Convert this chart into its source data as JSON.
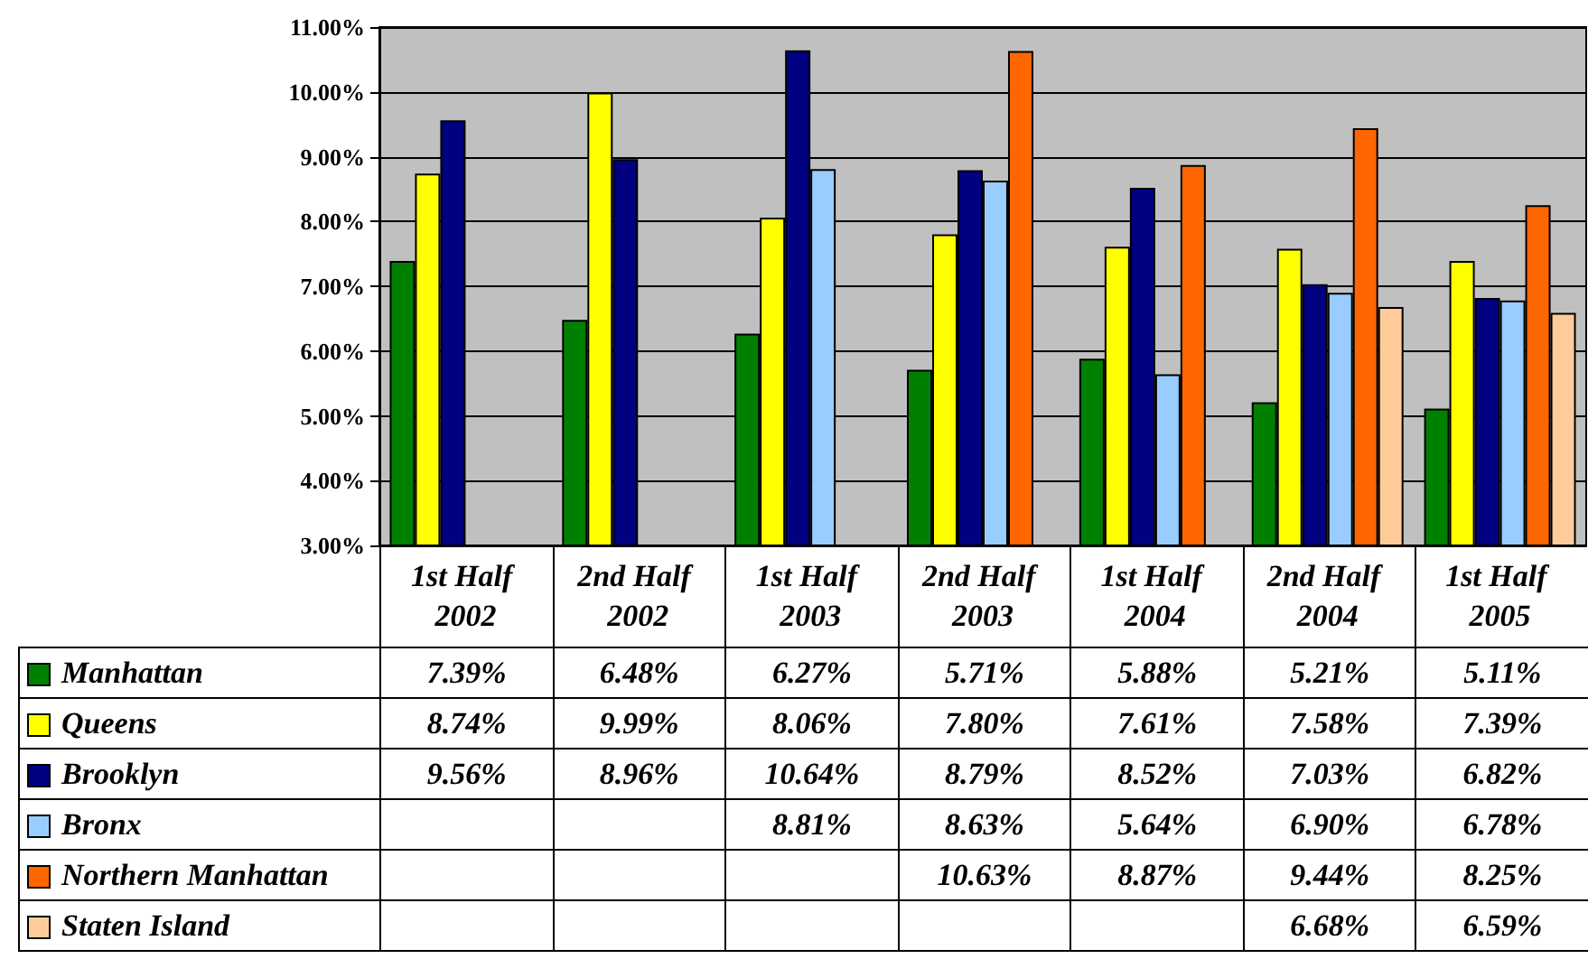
{
  "chart_data": {
    "type": "bar",
    "categories": [
      "1st Half 2002",
      "2nd Half 2002",
      "1st Half 2003",
      "2nd Half 2003",
      "1st Half 2004",
      "2nd Half 2004",
      "1st Half 2005"
    ],
    "series": [
      {
        "name": "Manhattan",
        "color": "#008000",
        "values": [
          7.39,
          6.48,
          6.27,
          5.71,
          5.88,
          5.21,
          5.11
        ],
        "value_labels": [
          "7.39%",
          "6.48%",
          "6.27%",
          "5.71%",
          "5.88%",
          "5.21%",
          "5.11%"
        ]
      },
      {
        "name": "Queens",
        "color": "#ffff00",
        "values": [
          8.74,
          9.99,
          8.06,
          7.8,
          7.61,
          7.58,
          7.39
        ],
        "value_labels": [
          "8.74%",
          "9.99%",
          "8.06%",
          "7.80%",
          "7.61%",
          "7.58%",
          "7.39%"
        ]
      },
      {
        "name": "Brooklyn",
        "color": "#000080",
        "values": [
          9.56,
          8.96,
          10.64,
          8.79,
          8.52,
          7.03,
          6.82
        ],
        "value_labels": [
          "9.56%",
          "8.96%",
          "10.64%",
          "8.79%",
          "8.52%",
          "7.03%",
          "6.82%"
        ]
      },
      {
        "name": "Bronx",
        "color": "#99ccff",
        "values": [
          null,
          null,
          8.81,
          8.63,
          5.64,
          6.9,
          6.78
        ],
        "value_labels": [
          null,
          null,
          "8.81%",
          "8.63%",
          "5.64%",
          "6.90%",
          "6.78%"
        ]
      },
      {
        "name": "Northern Manhattan",
        "color": "#ff6600",
        "values": [
          null,
          null,
          null,
          10.63,
          8.87,
          9.44,
          8.25
        ],
        "value_labels": [
          null,
          null,
          null,
          "10.63%",
          "8.87%",
          "9.44%",
          "8.25%"
        ]
      },
      {
        "name": "Staten Island",
        "color": "#ffcc99",
        "values": [
          null,
          null,
          null,
          null,
          null,
          6.68,
          6.59
        ],
        "value_labels": [
          null,
          null,
          null,
          null,
          null,
          "6.68%",
          "6.59%"
        ]
      }
    ],
    "ylim": [
      3,
      11
    ],
    "yticks": [
      {
        "value": 3,
        "label": "3.00%"
      },
      {
        "value": 4,
        "label": "4.00%"
      },
      {
        "value": 5,
        "label": "5.00%"
      },
      {
        "value": 6,
        "label": "6.00%"
      },
      {
        "value": 7,
        "label": "7.00%"
      },
      {
        "value": 8,
        "label": "8.00%"
      },
      {
        "value": 9,
        "label": "9.00%"
      },
      {
        "value": 10,
        "label": "10.00%"
      },
      {
        "value": 11,
        "label": "11.00%"
      }
    ],
    "grid": "y",
    "legend": "bottom"
  }
}
